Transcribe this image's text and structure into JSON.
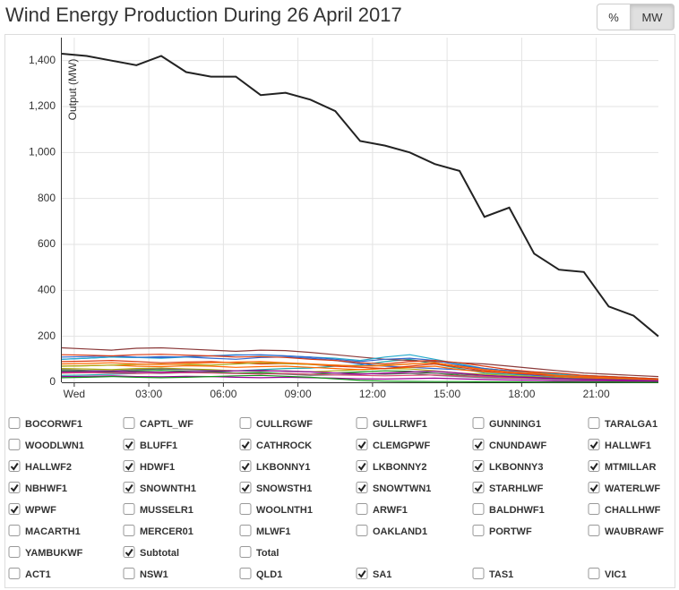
{
  "chart_data": {
    "type": "line",
    "title": "Wind Energy Production During 26 April 2017",
    "y_label": "Output (MW)",
    "unit_buttons": [
      {
        "label": "%"
      },
      {
        "label": "MW",
        "active": true
      }
    ],
    "x": [
      -0.5,
      0.5,
      1.5,
      2.5,
      3.5,
      4.5,
      5.5,
      6.5,
      7.5,
      8.5,
      9.5,
      10.5,
      11.5,
      12.5,
      13.5,
      14.5,
      15.5,
      16.5,
      17.5,
      18.5,
      19.5,
      20.5,
      21.5,
      22.5,
      23.5
    ],
    "xlim": [
      -0.5,
      23.5
    ],
    "xticks": [
      {
        "value": 0,
        "label": "Wed"
      },
      {
        "value": 3,
        "label": "03:00"
      },
      {
        "value": 6,
        "label": "06:00"
      },
      {
        "value": 9,
        "label": "09:00"
      },
      {
        "value": 12,
        "label": "12:00"
      },
      {
        "value": 15,
        "label": "15:00"
      },
      {
        "value": 18,
        "label": "18:00"
      },
      {
        "value": 21,
        "label": "21:00"
      }
    ],
    "ylim": [
      0,
      1500
    ],
    "yticks": [
      0,
      200,
      400,
      600,
      800,
      {
        "value": 1000,
        "label": "1,000"
      },
      {
        "value": 1200,
        "label": "1,200"
      },
      {
        "value": 1400,
        "label": "1,400"
      }
    ],
    "grid": true,
    "series": [
      {
        "name": "BOCORWF1",
        "color": "#3366cc",
        "checked": false
      },
      {
        "name": "CAPTL_WF",
        "color": "#ff6633",
        "checked": false
      },
      {
        "name": "CULLRGWF",
        "color": "#339933",
        "checked": false
      },
      {
        "name": "GULLRWF1",
        "color": "#cc0000",
        "checked": false
      },
      {
        "name": "GUNNING1",
        "color": "#9933cc",
        "checked": false
      },
      {
        "name": "TARALGA1",
        "color": "#8b4513",
        "checked": false
      },
      {
        "name": "WOODLWN1",
        "color": "#dd4477",
        "checked": false
      },
      {
        "name": "BLUFF1",
        "color": "#777777",
        "checked": true,
        "values": [
          40,
          42,
          45,
          40,
          38,
          42,
          45,
          40,
          38,
          35,
          30,
          32,
          35,
          40,
          38,
          30,
          25,
          20,
          18,
          15,
          12,
          10,
          8,
          6,
          5
        ]
      },
      {
        "name": "CATHROCK",
        "color": "#aaaa11",
        "checked": true,
        "values": [
          60,
          58,
          55,
          60,
          62,
          58,
          55,
          50,
          52,
          48,
          45,
          50,
          55,
          60,
          58,
          50,
          40,
          35,
          30,
          25,
          20,
          15,
          12,
          10,
          8
        ]
      },
      {
        "name": "CLEMGPWF",
        "color": "#22aaaa",
        "checked": true,
        "values": [
          30,
          32,
          35,
          38,
          40,
          42,
          45,
          50,
          55,
          60,
          62,
          70,
          75,
          90,
          100,
          80,
          60,
          40,
          35,
          30,
          25,
          20,
          15,
          12,
          10
        ]
      },
      {
        "name": "CNUNDAWF",
        "color": "#3366cc",
        "checked": true,
        "values": [
          100,
          105,
          110,
          108,
          112,
          110,
          105,
          100,
          108,
          110,
          105,
          95,
          80,
          70,
          65,
          60,
          55,
          50,
          40,
          30,
          25,
          20,
          15,
          12,
          10
        ]
      },
      {
        "name": "HALLWF1",
        "color": "#ff6600",
        "checked": true,
        "values": [
          70,
          72,
          75,
          70,
          68,
          72,
          70,
          65,
          68,
          70,
          65,
          60,
          55,
          60,
          65,
          70,
          55,
          45,
          40,
          35,
          25,
          20,
          15,
          10,
          8
        ]
      },
      {
        "name": "HALLWF2",
        "color": "#109618",
        "checked": true,
        "values": [
          50,
          48,
          45,
          50,
          52,
          48,
          45,
          40,
          42,
          38,
          35,
          40,
          45,
          50,
          48,
          40,
          30,
          25,
          20,
          18,
          15,
          12,
          10,
          8,
          6
        ]
      },
      {
        "name": "HDWF1",
        "color": "#dc3912",
        "checked": true,
        "values": [
          90,
          92,
          95,
          90,
          85,
          88,
          90,
          85,
          80,
          82,
          78,
          70,
          65,
          60,
          70,
          80,
          65,
          50,
          40,
          35,
          30,
          25,
          20,
          15,
          12
        ]
      },
      {
        "name": "LKBONNY1",
        "color": "#990099",
        "checked": true,
        "values": [
          25,
          26,
          28,
          25,
          24,
          26,
          25,
          22,
          20,
          22,
          20,
          18,
          15,
          14,
          16,
          18,
          15,
          12,
          10,
          8,
          6,
          5,
          4,
          3,
          3
        ]
      },
      {
        "name": "LKBONNY2",
        "color": "#8b3a3a",
        "checked": true,
        "values": [
          150,
          145,
          140,
          148,
          150,
          145,
          140,
          135,
          140,
          138,
          130,
          120,
          110,
          100,
          95,
          90,
          85,
          80,
          70,
          60,
          50,
          40,
          35,
          30,
          25
        ]
      },
      {
        "name": "LKBONNY3",
        "color": "#dd4477",
        "checked": true,
        "values": [
          40,
          42,
          40,
          38,
          40,
          42,
          40,
          38,
          36,
          38,
          35,
          32,
          30,
          28,
          30,
          32,
          28,
          25,
          20,
          18,
          15,
          12,
          10,
          8,
          6
        ]
      },
      {
        "name": "MTMILLAR",
        "color": "#666666",
        "checked": true,
        "values": [
          55,
          52,
          50,
          55,
          58,
          55,
          52,
          50,
          48,
          50,
          45,
          40,
          38,
          35,
          38,
          40,
          35,
          30,
          25,
          22,
          18,
          15,
          12,
          10,
          8
        ]
      },
      {
        "name": "NBHWF1",
        "color": "#aaaa11",
        "checked": true,
        "values": [
          70,
          72,
          75,
          78,
          80,
          78,
          75,
          80,
          85,
          82,
          78,
          75,
          70,
          75,
          80,
          85,
          70,
          60,
          50,
          40,
          35,
          30,
          25,
          20,
          15
        ]
      },
      {
        "name": "SNOWNTH1",
        "color": "#22aacc",
        "checked": true,
        "values": [
          100,
          105,
          110,
          108,
          105,
          110,
          115,
          120,
          118,
          115,
          110,
          105,
          95,
          110,
          120,
          100,
          80,
          60,
          50,
          45,
          35,
          30,
          25,
          20,
          15
        ]
      },
      {
        "name": "SNOWSTH1",
        "color": "#3366cc",
        "checked": true,
        "values": [
          110,
          112,
          115,
          110,
          108,
          112,
          115,
          118,
          120,
          115,
          110,
          100,
          90,
          100,
          105,
          95,
          75,
          60,
          50,
          40,
          30,
          25,
          20,
          15,
          12
        ]
      },
      {
        "name": "SNOWTWN1",
        "color": "#ff6600",
        "checked": true,
        "values": [
          80,
          82,
          85,
          80,
          78,
          82,
          85,
          88,
          90,
          85,
          80,
          75,
          70,
          72,
          80,
          85,
          70,
          55,
          45,
          40,
          30,
          25,
          20,
          15,
          12
        ]
      },
      {
        "name": "STARHLWF",
        "color": "#109618",
        "checked": true,
        "values": [
          20,
          22,
          25,
          22,
          20,
          22,
          25,
          28,
          30,
          26,
          22,
          15,
          8,
          5,
          4,
          3,
          3,
          2,
          2,
          1,
          1,
          1,
          1,
          0,
          0
        ]
      },
      {
        "name": "WATERLWF",
        "color": "#dc3912",
        "checked": true,
        "values": [
          120,
          118,
          115,
          120,
          122,
          118,
          115,
          110,
          112,
          108,
          100,
          95,
          85,
          80,
          90,
          95,
          85,
          70,
          55,
          45,
          40,
          30,
          25,
          20,
          15
        ]
      },
      {
        "name": "WPWF",
        "color": "#990099",
        "checked": true,
        "values": [
          45,
          46,
          48,
          45,
          44,
          46,
          48,
          50,
          52,
          48,
          45,
          40,
          35,
          40,
          45,
          48,
          40,
          30,
          25,
          20,
          15,
          12,
          10,
          8,
          6
        ]
      },
      {
        "name": "MUSSELR1",
        "color": "#8b3a3a",
        "checked": false
      },
      {
        "name": "WOOLNTH1",
        "color": "#dd4477",
        "checked": false
      },
      {
        "name": "ARWF1",
        "color": "#666666",
        "checked": false
      },
      {
        "name": "BALDHWF1",
        "color": "#aaaa11",
        "checked": false
      },
      {
        "name": "CHALLHWF",
        "color": "#22aacc",
        "checked": false
      },
      {
        "name": "MACARTH1",
        "color": "#3366cc",
        "checked": false
      },
      {
        "name": "MERCER01",
        "color": "#ff6600",
        "checked": false
      },
      {
        "name": "MLWF1",
        "color": "#109618",
        "checked": false
      },
      {
        "name": "OAKLAND1",
        "color": "#dc3912",
        "checked": false
      },
      {
        "name": "PORTWF",
        "color": "#990099",
        "checked": false
      },
      {
        "name": "WAUBRAWF",
        "color": "#8b3a3a",
        "checked": false
      },
      {
        "name": "YAMBUKWF",
        "color": "#dd4477",
        "checked": false
      },
      {
        "name": "Subtotal",
        "color": "#222222",
        "checked": true,
        "values": [
          1430,
          1420,
          1400,
          1380,
          1420,
          1350,
          1330,
          1330,
          1250,
          1260,
          1230,
          1180,
          1050,
          1030,
          1000,
          950,
          920,
          720,
          760,
          560,
          490,
          480,
          330,
          290,
          200
        ]
      },
      {
        "name": "Total",
        "color": "#222222",
        "checked": false
      }
    ],
    "regions": [
      {
        "name": "ACT1",
        "checked": false
      },
      {
        "name": "NSW1",
        "checked": false
      },
      {
        "name": "QLD1",
        "checked": false
      },
      {
        "name": "SA1",
        "checked": true
      },
      {
        "name": "TAS1",
        "checked": false
      },
      {
        "name": "VIC1",
        "checked": false
      }
    ]
  }
}
